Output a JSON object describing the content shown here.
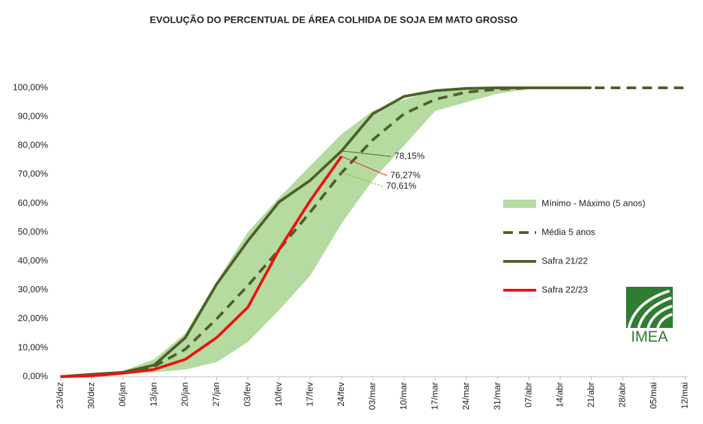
{
  "chart_data": {
    "type": "line",
    "title": "EVOLUÇÃO DO PERCENTUAL DE ÁREA COLHIDA DE SOJA EM MATO GROSSO",
    "categories": [
      "23/dez",
      "30/dez",
      "06/jan",
      "13/jan",
      "20/jan",
      "27/jan",
      "03/fev",
      "10/fev",
      "17/fev",
      "24/fev",
      "03/mar",
      "10/mar",
      "17/mar",
      "24/mar",
      "31/mar",
      "07/abr",
      "14/abr",
      "21/abr",
      "28/abr",
      "05/mai",
      "12/mai"
    ],
    "ylim": [
      0,
      100
    ],
    "yticks": [
      {
        "value": 0,
        "label": "0,00%"
      },
      {
        "value": 10,
        "label": "10,00%"
      },
      {
        "value": 20,
        "label": "20,00%"
      },
      {
        "value": 30,
        "label": "30,00%"
      },
      {
        "value": 40,
        "label": "40,00%"
      },
      {
        "value": 50,
        "label": "50,00%"
      },
      {
        "value": 60,
        "label": "60,00%"
      },
      {
        "value": 70,
        "label": "70,00%"
      },
      {
        "value": 80,
        "label": "80,00%"
      },
      {
        "value": 90,
        "label": "90,00%"
      },
      {
        "value": 100,
        "label": "100,00%"
      }
    ],
    "series": [
      {
        "name": "Mínimo - Máximo (5 anos)",
        "type": "band",
        "color": "#b5dba0",
        "min": [
          0,
          0.2,
          0.8,
          1.5,
          2.5,
          5,
          12,
          23,
          35,
          53,
          68,
          80,
          92,
          95,
          98,
          99.5,
          100,
          100,
          null,
          null,
          null
        ],
        "max": [
          0,
          1,
          2,
          6,
          15,
          33,
          50,
          62,
          73,
          84,
          92,
          96,
          99,
          99.8,
          100,
          100,
          100,
          100,
          null,
          null,
          null
        ]
      },
      {
        "name": "Média 5 anos",
        "type": "dashed",
        "color": "#4e5f2a",
        "values": [
          0,
          0.5,
          1.2,
          3.5,
          9.5,
          20,
          31.5,
          44,
          57,
          70.61,
          82,
          91,
          96,
          98.5,
          99.5,
          100,
          100,
          100,
          100,
          100,
          100
        ],
        "value_labels": [
          null,
          null,
          null,
          null,
          null,
          null,
          null,
          null,
          null,
          "70,61%",
          null,
          null,
          null,
          null,
          null,
          null,
          null,
          null,
          null,
          null,
          null
        ]
      },
      {
        "name": "Safra 21/22",
        "type": "solid",
        "color": "#4e5f2a",
        "values": [
          0,
          0.8,
          1.5,
          4,
          13.5,
          32,
          47,
          60.5,
          68,
          78.15,
          91,
          97,
          99,
          99.8,
          100,
          100,
          100,
          100,
          null,
          null,
          null
        ],
        "value_labels": [
          null,
          null,
          null,
          null,
          null,
          null,
          null,
          null,
          null,
          "78,15%",
          null,
          null,
          null,
          null,
          null,
          null,
          null,
          null,
          null,
          null,
          null
        ]
      },
      {
        "name": "Safra 22/23",
        "type": "solid",
        "color": "#ee1111",
        "values": [
          0,
          0.3,
          1.2,
          2.5,
          6,
          13.5,
          24,
          44,
          61,
          76.27,
          null,
          null,
          null,
          null,
          null,
          null,
          null,
          null,
          null,
          null,
          null
        ],
        "value_labels": [
          null,
          null,
          null,
          null,
          null,
          null,
          null,
          null,
          null,
          "76,27%",
          null,
          null,
          null,
          null,
          null,
          null,
          null,
          null,
          null,
          null,
          null
        ]
      }
    ]
  },
  "logo_text": "IMEA"
}
